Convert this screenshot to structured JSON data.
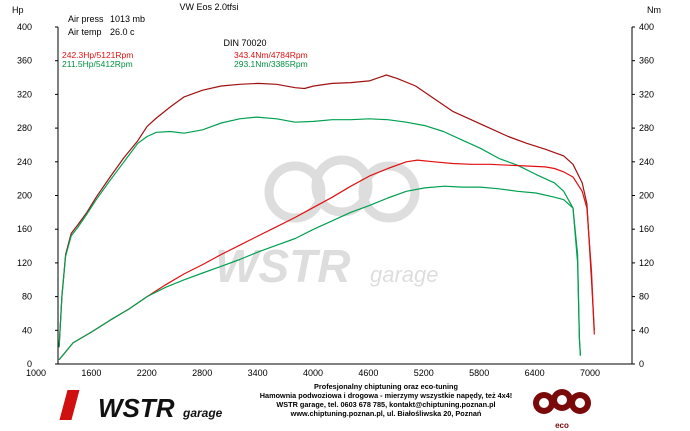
{
  "chart_data": {
    "type": "line",
    "title": "VW Eos 2.0tfsi",
    "subtitle": "DIN 70020",
    "ylabel_left": "Hp",
    "ylabel_right": "Nm",
    "conditions": [
      {
        "label": "Air press",
        "value": "1013 mb"
      },
      {
        "label": "Air temp",
        "value": "26.0 c"
      }
    ],
    "xlim": [
      1000,
      7200
    ],
    "ylim": [
      0,
      400
    ],
    "x_ticks": [
      "1000",
      "1600",
      "2200",
      "2800",
      "3400",
      "4000",
      "4600",
      "5200",
      "5800",
      "6400",
      "7000"
    ],
    "y_ticks": [
      "0",
      "40",
      "80",
      "120",
      "160",
      "200",
      "240",
      "280",
      "320",
      "360",
      "400"
    ],
    "legend": [
      {
        "text": "242.3Hp/5121Rpm",
        "color": "#e01010"
      },
      {
        "text": "211.5Hp/5412Rpm",
        "color": "#009040"
      },
      {
        "text": "343.4Nm/4784Rpm",
        "color": "#e01010"
      },
      {
        "text": "293.1Nm/3385Rpm",
        "color": "#009040"
      }
    ],
    "series": [
      {
        "kind": "torque-tuned",
        "color": "#a01010",
        "x": [
          1250,
          1280,
          1320,
          1380,
          1450,
          1550,
          1650,
          1800,
          1950,
          2100,
          2200,
          2300,
          2450,
          2600,
          2800,
          3000,
          3200,
          3400,
          3600,
          3800,
          3900,
          4000,
          4200,
          4400,
          4600,
          4784,
          4900,
          5100,
          5300,
          5500,
          5700,
          5900,
          6100,
          6300,
          6500,
          6700,
          6800,
          6900,
          6950,
          7000,
          7030
        ],
        "y": [
          20,
          80,
          130,
          155,
          165,
          180,
          198,
          222,
          245,
          265,
          282,
          292,
          305,
          317,
          325,
          330,
          332,
          333,
          332,
          328,
          327,
          330,
          333,
          334,
          336,
          343,
          339,
          330,
          315,
          300,
          290,
          280,
          270,
          262,
          255,
          247,
          237,
          215,
          190,
          100,
          40
        ]
      },
      {
        "kind": "torque-stock",
        "color": "#00a050",
        "x": [
          1250,
          1280,
          1320,
          1380,
          1450,
          1550,
          1650,
          1800,
          1950,
          2100,
          2200,
          2300,
          2450,
          2600,
          2800,
          3000,
          3200,
          3385,
          3600,
          3800,
          4000,
          4200,
          4400,
          4600,
          4800,
          5000,
          5200,
          5400,
          5600,
          5800,
          6000,
          6200,
          6400,
          6600,
          6700,
          6800,
          6850,
          6870,
          6880
        ],
        "y": [
          20,
          80,
          128,
          152,
          162,
          178,
          195,
          218,
          240,
          262,
          270,
          275,
          276,
          274,
          278,
          286,
          291,
          293,
          291,
          287,
          288,
          290,
          290,
          291,
          290,
          287,
          283,
          276,
          266,
          256,
          244,
          236,
          225,
          215,
          205,
          185,
          120,
          30,
          10
        ]
      },
      {
        "kind": "power-tuned",
        "color": "#e01010",
        "x": [
          1250,
          1400,
          1600,
          1800,
          2000,
          2200,
          2400,
          2600,
          2800,
          3000,
          3200,
          3400,
          3600,
          3800,
          4000,
          4200,
          4400,
          4600,
          4800,
          5000,
          5121,
          5300,
          5500,
          5700,
          5900,
          6100,
          6300,
          6500,
          6600,
          6700,
          6800,
          6900,
          6950,
          7000,
          7030
        ],
        "y": [
          5,
          25,
          38,
          52,
          65,
          80,
          94,
          107,
          118,
          130,
          141,
          152,
          163,
          174,
          186,
          198,
          211,
          223,
          232,
          240,
          242,
          240,
          238,
          237,
          237,
          236,
          235,
          234,
          232,
          228,
          222,
          205,
          185,
          110,
          35
        ]
      },
      {
        "kind": "power-stock",
        "color": "#00a050",
        "x": [
          1250,
          1400,
          1600,
          1800,
          2000,
          2200,
          2400,
          2600,
          2800,
          3000,
          3200,
          3400,
          3600,
          3800,
          4000,
          4200,
          4400,
          4600,
          4800,
          5000,
          5200,
          5412,
          5600,
          5800,
          6000,
          6200,
          6400,
          6600,
          6700,
          6800,
          6850,
          6870,
          6880
        ],
        "y": [
          5,
          25,
          38,
          52,
          65,
          80,
          91,
          100,
          108,
          116,
          124,
          133,
          141,
          149,
          160,
          170,
          180,
          188,
          197,
          205,
          209,
          211,
          210,
          210,
          208,
          205,
          203,
          198,
          195,
          185,
          130,
          30,
          10
        ]
      }
    ],
    "grid": false,
    "legend_placement": "top-left"
  },
  "footer": {
    "line1": "Profesjonalny chiptuning oraz eco-tuning",
    "line2": "Hamownia podwoziowa i drogowa - mierzymy wszystkie napędy, też 4x4!",
    "line3": "WSTR garage, tel. 0603 678 785, kontakt@chiptuning.poznan.pl",
    "line4": "www.chiptuning.poznan.pl, ul. Białośliwska 20, Poznań"
  },
  "logos": {
    "left_main": "WSTR",
    "left_sub": "garage",
    "right_main": "eco"
  }
}
